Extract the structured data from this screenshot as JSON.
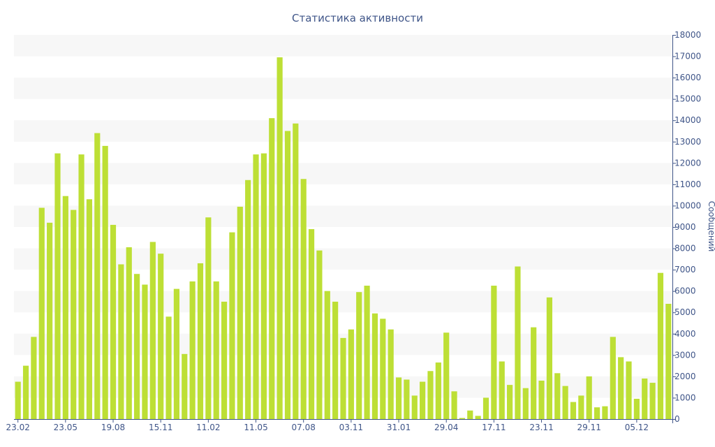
{
  "chart_data": {
    "type": "bar",
    "title": "Статистика активности",
    "ylabel": "Сообщений",
    "xlabel": "",
    "ylim": [
      0,
      18000
    ],
    "yticks": [
      0,
      1000,
      2000,
      3000,
      4000,
      5000,
      6000,
      7000,
      8000,
      9000,
      10000,
      11000,
      12000,
      13000,
      14000,
      15000,
      16000,
      17000,
      18000
    ],
    "x_tick_labels": [
      {
        "label": "23.02",
        "index": 0
      },
      {
        "label": "23.05",
        "index": 6
      },
      {
        "label": "19.08",
        "index": 12
      },
      {
        "label": "15.11",
        "index": 18
      },
      {
        "label": "11.02",
        "index": 24
      },
      {
        "label": "11.05",
        "index": 30
      },
      {
        "label": "07.08",
        "index": 36
      },
      {
        "label": "03.11",
        "index": 42
      },
      {
        "label": "31.01",
        "index": 48
      },
      {
        "label": "29.04",
        "index": 54
      },
      {
        "label": "17.11",
        "index": 60
      },
      {
        "label": "23.11",
        "index": 66
      },
      {
        "label": "29.11",
        "index": 72
      },
      {
        "label": "05.12",
        "index": 78
      }
    ],
    "y_axis_position": "right",
    "grid": "alternating horizontal bands",
    "legend": "none",
    "values": [
      1750,
      2500,
      3850,
      9900,
      9200,
      12450,
      10450,
      9800,
      12400,
      10300,
      13400,
      12800,
      9100,
      7250,
      8050,
      6800,
      6300,
      8300,
      7750,
      4800,
      6100,
      3050,
      6450,
      7300,
      9450,
      6450,
      5500,
      8750,
      9950,
      11200,
      12400,
      12450,
      14100,
      16950,
      13500,
      13850,
      11250,
      8900,
      7900,
      6000,
      5500,
      3800,
      4200,
      5950,
      6250,
      4950,
      4700,
      4200,
      1950,
      1850,
      1100,
      1750,
      2250,
      2650,
      4050,
      1300,
      50,
      400,
      150,
      1000,
      6250,
      2700,
      1600,
      7150,
      1450,
      4300,
      1800,
      5700,
      2150,
      1550,
      800,
      1100,
      2000,
      550,
      600,
      3850,
      2900,
      2700,
      950,
      1900,
      1700,
      6850,
      5400
    ],
    "colors": {
      "bar": "#bddf35",
      "band": "#f7f7f7",
      "text": "#3f5588",
      "axis": "#3f5588"
    }
  }
}
